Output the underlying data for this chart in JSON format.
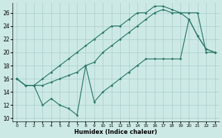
{
  "xlabel": "Humidex (Indice chaleur)",
  "xlim": [
    -0.5,
    23.5
  ],
  "ylim": [
    9.5,
    27.5
  ],
  "xticks": [
    0,
    1,
    2,
    3,
    4,
    5,
    6,
    7,
    8,
    9,
    10,
    11,
    12,
    13,
    14,
    15,
    16,
    17,
    18,
    19,
    20,
    21,
    22,
    23
  ],
  "yticks": [
    10,
    12,
    14,
    16,
    18,
    20,
    22,
    24,
    26
  ],
  "background_color": "#cce9e5",
  "grid_color": "#a8ccca",
  "line_color": "#2d7a6a",
  "line1_x": [
    0,
    1,
    2,
    3,
    4,
    5,
    6,
    7,
    8,
    9,
    10,
    11,
    12,
    13,
    14,
    15,
    16,
    17,
    18,
    19,
    20,
    21,
    22,
    23
  ],
  "line1_y": [
    16,
    15,
    15,
    16,
    17,
    18,
    19,
    20,
    21,
    22,
    23,
    24,
    24,
    25,
    26,
    26,
    27,
    27,
    26.5,
    26,
    26,
    26,
    20,
    20
  ],
  "line2_x": [
    0,
    1,
    2,
    3,
    4,
    5,
    6,
    7,
    8,
    9,
    10,
    11,
    12,
    13,
    14,
    15,
    16,
    17,
    18,
    19,
    20,
    21,
    22,
    23
  ],
  "line2_y": [
    16,
    15,
    15,
    15,
    15.5,
    16,
    16.5,
    17,
    18,
    18.5,
    20,
    21,
    22,
    23,
    24,
    25,
    26,
    26.5,
    26,
    26,
    25,
    22.5,
    20.5,
    20
  ],
  "line3_x": [
    0,
    1,
    2,
    3,
    4,
    5,
    6,
    7,
    8,
    9,
    10,
    11,
    12,
    13,
    14,
    15,
    16,
    17,
    18,
    19,
    20,
    21,
    22,
    23
  ],
  "line3_y": [
    16,
    15,
    15,
    12,
    13,
    12,
    11.5,
    10.5,
    18,
    12.5,
    14,
    15,
    16,
    17,
    18,
    19,
    19,
    19,
    19,
    19,
    25,
    22.5,
    20.5,
    20
  ]
}
